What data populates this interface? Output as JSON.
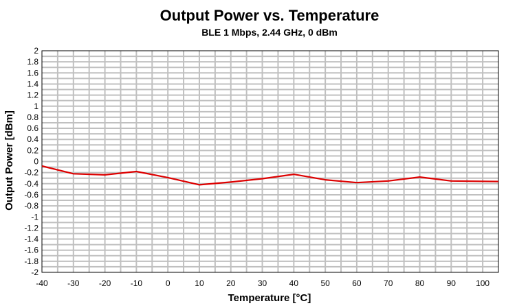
{
  "chart_data": {
    "type": "line",
    "title": "Output Power vs. Temperature",
    "subtitle": "BLE 1 Mbps, 2.44 GHz, 0 dBm",
    "xlabel": "Temperature [°C]",
    "ylabel": "Output Power [dBm]",
    "xlim": [
      -40,
      105
    ],
    "ylim": [
      -2,
      2
    ],
    "grid": true,
    "x_ticks": [
      -40,
      -30,
      -20,
      -10,
      0,
      10,
      20,
      30,
      40,
      50,
      60,
      70,
      80,
      90,
      100
    ],
    "x_tick_labels": [
      "-40",
      "-30",
      "-20",
      "-10",
      "0",
      "10",
      "20",
      "30",
      "40",
      "50",
      "60",
      "70",
      "80",
      "90",
      "100"
    ],
    "y_ticks": [
      2,
      1.8,
      1.6,
      1.4,
      1.2,
      1,
      0.8,
      0.6,
      0.4,
      0.2,
      0,
      -0.2,
      -0.4,
      -0.6,
      -0.8,
      -1,
      -1.2,
      -1.4,
      -1.6,
      -1.8,
      -2
    ],
    "y_tick_labels": [
      "2",
      "1.8",
      "1.6",
      "1.4",
      "1.2",
      "1",
      "0.8",
      "0.6",
      "0.4",
      "0.2",
      "0",
      "-0.2",
      "-0.4",
      "-0.6",
      "-0.8",
      "-1",
      "-1.2",
      "-1.4",
      "-1.6",
      "-1.8",
      "-2"
    ],
    "series": [
      {
        "name": "Output Power",
        "color": "#dd0000",
        "x": [
          -40,
          -30,
          -20,
          -10,
          0,
          10,
          20,
          30,
          40,
          50,
          60,
          70,
          80,
          90,
          105
        ],
        "values": [
          -0.08,
          -0.22,
          -0.24,
          -0.18,
          -0.29,
          -0.42,
          -0.37,
          -0.31,
          -0.23,
          -0.33,
          -0.38,
          -0.35,
          -0.28,
          -0.35,
          -0.36
        ]
      }
    ]
  }
}
